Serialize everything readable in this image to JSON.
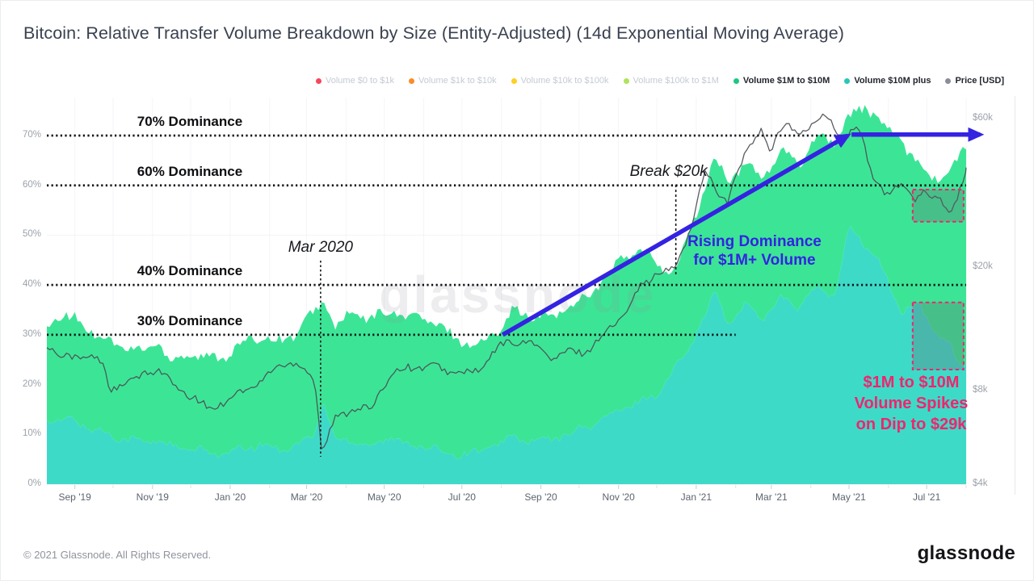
{
  "header": {
    "title": "Bitcoin: Relative Transfer Volume Breakdown by Size (Entity-Adjusted) (14d Exponential Moving Average)"
  },
  "legend": {
    "items": [
      {
        "label": "Volume $0 to $1k",
        "dot": "#F6465D",
        "active": false
      },
      {
        "label": "Volume $1k to $10k",
        "dot": "#F98C2B",
        "active": false
      },
      {
        "label": "Volume $10k to $100k",
        "dot": "#FFCF26",
        "active": false
      },
      {
        "label": "Volume $100k to $1M",
        "dot": "#AEE35C",
        "active": false
      },
      {
        "label": "Volume $1M to $10M",
        "dot": "#1FC583",
        "active": true
      },
      {
        "label": "Volume $10M plus",
        "dot": "#2BC5B8",
        "active": true
      },
      {
        "label": "Price [USD]",
        "dot": "#8A8E99",
        "active": true
      }
    ]
  },
  "watermark": {
    "text": "glassnode"
  },
  "footer": {
    "copyright": "© 2021 Glassnode. All Rights Reserved.",
    "logo": "glassnode"
  },
  "chart_data": {
    "type": "area",
    "stacking": "stacked",
    "x_range": [
      "2019-08-10",
      "2021-08-01"
    ],
    "x_ticks": [
      "Sep '19",
      "Nov '19",
      "Jan '20",
      "Mar '20",
      "May '20",
      "Jul '20",
      "Sep '20",
      "Nov '20",
      "Jan '21",
      "Mar '21",
      "May '21",
      "Jul '21"
    ],
    "y_left": {
      "unit": "%",
      "min": 0,
      "max": 77.7,
      "ticks": [
        0,
        10,
        20,
        30,
        40,
        50,
        60,
        70
      ],
      "tick_suffix": "%"
    },
    "y_right": {
      "unit": "USD",
      "scale": "log",
      "ticks": [
        {
          "label": "$60k",
          "value": 60
        },
        {
          "label": "$20k",
          "value": 20
        },
        {
          "label": "$8k",
          "value": 8
        },
        {
          "label": "$4k",
          "value": 4
        }
      ]
    },
    "noise": {
      "upper": 1.35,
      "lower": 0.95,
      "price": 0.035
    },
    "series": [
      {
        "name": "Volume $1M to $10M",
        "color": "#3CE596",
        "kind": "area_band",
        "band": "upper",
        "points": [
          [
            "2019-08-10",
            31
          ],
          [
            "2019-08-20",
            34
          ],
          [
            "2019-09-01",
            33
          ],
          [
            "2019-09-14",
            31
          ],
          [
            "2019-09-28",
            28.5
          ],
          [
            "2019-10-12",
            27.5
          ],
          [
            "2019-10-26",
            26.5
          ],
          [
            "2019-11-05",
            29
          ],
          [
            "2019-11-16",
            24.5
          ],
          [
            "2019-11-30",
            26.5
          ],
          [
            "2019-12-14",
            25
          ],
          [
            "2019-12-28",
            26
          ],
          [
            "2020-01-11",
            28
          ],
          [
            "2020-01-25",
            30
          ],
          [
            "2020-02-08",
            28.5
          ],
          [
            "2020-02-22",
            30.5
          ],
          [
            "2020-03-07",
            34.5
          ],
          [
            "2020-03-14",
            37
          ],
          [
            "2020-03-24",
            31.5
          ],
          [
            "2020-04-07",
            34.5
          ],
          [
            "2020-04-21",
            33
          ],
          [
            "2020-05-05",
            35
          ],
          [
            "2020-05-19",
            33.5
          ],
          [
            "2020-06-02",
            33.5
          ],
          [
            "2020-06-16",
            31
          ],
          [
            "2020-06-30",
            29
          ],
          [
            "2020-07-14",
            27.5
          ],
          [
            "2020-07-28",
            31
          ],
          [
            "2020-08-11",
            35
          ],
          [
            "2020-08-25",
            33.5
          ],
          [
            "2020-09-08",
            33.5
          ],
          [
            "2020-09-22",
            35.5
          ],
          [
            "2020-10-06",
            37.5
          ],
          [
            "2020-10-20",
            41
          ],
          [
            "2020-11-03",
            45
          ],
          [
            "2020-11-17",
            47
          ],
          [
            "2020-12-01",
            44.5
          ],
          [
            "2020-12-15",
            42.5
          ],
          [
            "2020-12-29",
            52
          ],
          [
            "2021-01-12",
            63
          ],
          [
            "2021-01-16",
            65
          ],
          [
            "2021-01-26",
            61
          ],
          [
            "2021-02-09",
            64
          ],
          [
            "2021-02-23",
            62
          ],
          [
            "2021-03-09",
            66.5
          ],
          [
            "2021-03-23",
            64.5
          ],
          [
            "2021-04-06",
            70
          ],
          [
            "2021-04-20",
            69
          ],
          [
            "2021-05-04",
            74.5
          ],
          [
            "2021-05-14",
            76
          ],
          [
            "2021-05-28",
            72
          ],
          [
            "2021-06-11",
            69
          ],
          [
            "2021-06-25",
            64
          ],
          [
            "2021-07-09",
            61.5
          ],
          [
            "2021-07-20",
            62.5
          ],
          [
            "2021-07-27",
            66
          ],
          [
            "2021-08-01",
            68
          ]
        ]
      },
      {
        "name": "Volume $10M plus",
        "color": "#3EDAC8",
        "kind": "area_band",
        "band": "lower",
        "points": [
          [
            "2019-08-10",
            13
          ],
          [
            "2019-08-20",
            12.5
          ],
          [
            "2019-09-01",
            13
          ],
          [
            "2019-09-14",
            11
          ],
          [
            "2019-09-28",
            10
          ],
          [
            "2019-10-12",
            9
          ],
          [
            "2019-10-26",
            8.5
          ],
          [
            "2019-11-05",
            9
          ],
          [
            "2019-11-16",
            7.5
          ],
          [
            "2019-11-30",
            7
          ],
          [
            "2019-12-14",
            6.5
          ],
          [
            "2019-12-28",
            6
          ],
          [
            "2020-01-11",
            7
          ],
          [
            "2020-01-25",
            8
          ],
          [
            "2020-02-08",
            7
          ],
          [
            "2020-02-22",
            8
          ],
          [
            "2020-03-07",
            9.5
          ],
          [
            "2020-03-14",
            17
          ],
          [
            "2020-03-24",
            8.5
          ],
          [
            "2020-04-07",
            9
          ],
          [
            "2020-04-21",
            7.5
          ],
          [
            "2020-05-05",
            9.5
          ],
          [
            "2020-05-19",
            8
          ],
          [
            "2020-06-02",
            7.5
          ],
          [
            "2020-06-16",
            6.5
          ],
          [
            "2020-06-30",
            6
          ],
          [
            "2020-07-14",
            6.5
          ],
          [
            "2020-07-28",
            8
          ],
          [
            "2020-08-11",
            9.5
          ],
          [
            "2020-08-25",
            8.5
          ],
          [
            "2020-09-08",
            9
          ],
          [
            "2020-09-22",
            10
          ],
          [
            "2020-10-06",
            11.5
          ],
          [
            "2020-10-20",
            13
          ],
          [
            "2020-11-03",
            15
          ],
          [
            "2020-11-17",
            16.5
          ],
          [
            "2020-12-01",
            18
          ],
          [
            "2020-12-15",
            23
          ],
          [
            "2020-12-29",
            29
          ],
          [
            "2021-01-12",
            36
          ],
          [
            "2021-01-16",
            39
          ],
          [
            "2021-01-26",
            32
          ],
          [
            "2021-02-09",
            36
          ],
          [
            "2021-02-23",
            33.5
          ],
          [
            "2021-03-09",
            37.5
          ],
          [
            "2021-03-23",
            35.5
          ],
          [
            "2021-04-06",
            39.5
          ],
          [
            "2021-04-20",
            37.5
          ],
          [
            "2021-05-01",
            52
          ],
          [
            "2021-05-14",
            48
          ],
          [
            "2021-05-28",
            43
          ],
          [
            "2021-06-11",
            34.5
          ],
          [
            "2021-06-25",
            36
          ],
          [
            "2021-07-09",
            30
          ],
          [
            "2021-07-18",
            28.5
          ],
          [
            "2021-07-24",
            25
          ],
          [
            "2021-08-01",
            24
          ]
        ]
      },
      {
        "name": "Price [USD]",
        "color": "#4A4E54",
        "kind": "line",
        "unit": "$k",
        "points": [
          [
            "2019-08-10",
            11.3
          ],
          [
            "2019-08-20",
            10.3
          ],
          [
            "2019-09-01",
            10.4
          ],
          [
            "2019-09-14",
            10.2
          ],
          [
            "2019-09-24",
            9.7
          ],
          [
            "2019-09-28",
            8.2
          ],
          [
            "2019-10-12",
            8.3
          ],
          [
            "2019-10-26",
            9.2
          ],
          [
            "2019-11-05",
            9.3
          ],
          [
            "2019-11-16",
            8.5
          ],
          [
            "2019-11-30",
            7.6
          ],
          [
            "2019-12-14",
            7.1
          ],
          [
            "2019-12-28",
            7.3
          ],
          [
            "2020-01-11",
            8.1
          ],
          [
            "2020-01-25",
            8.4
          ],
          [
            "2020-02-08",
            9.8
          ],
          [
            "2020-02-22",
            9.7
          ],
          [
            "2020-03-07",
            8.9
          ],
          [
            "2020-03-13",
            5.0
          ],
          [
            "2020-03-24",
            6.5
          ],
          [
            "2020-04-07",
            7.1
          ],
          [
            "2020-04-21",
            6.9
          ],
          [
            "2020-05-05",
            9.0
          ],
          [
            "2020-05-19",
            9.5
          ],
          [
            "2020-06-02",
            9.6
          ],
          [
            "2020-06-16",
            9.4
          ],
          [
            "2020-06-30",
            9.1
          ],
          [
            "2020-07-14",
            9.2
          ],
          [
            "2020-07-28",
            10.9
          ],
          [
            "2020-08-11",
            11.6
          ],
          [
            "2020-08-25",
            11.4
          ],
          [
            "2020-09-08",
            10.2
          ],
          [
            "2020-09-22",
            10.6
          ],
          [
            "2020-10-06",
            10.7
          ],
          [
            "2020-10-20",
            12.0
          ],
          [
            "2020-11-03",
            13.8
          ],
          [
            "2020-11-17",
            17.0
          ],
          [
            "2020-12-01",
            19.2
          ],
          [
            "2020-12-15",
            19.4
          ],
          [
            "2020-12-29",
            27.5
          ],
          [
            "2021-01-08",
            40.5
          ],
          [
            "2021-01-16",
            36
          ],
          [
            "2021-01-26",
            32.5
          ],
          [
            "2021-02-09",
            46.5
          ],
          [
            "2021-02-21",
            56
          ],
          [
            "2021-02-28",
            45.5
          ],
          [
            "2021-03-13",
            60
          ],
          [
            "2021-03-25",
            52.5
          ],
          [
            "2021-04-13",
            63.3
          ],
          [
            "2021-04-25",
            49.5
          ],
          [
            "2021-05-08",
            58.5
          ],
          [
            "2021-05-19",
            38
          ],
          [
            "2021-05-29",
            35
          ],
          [
            "2021-06-12",
            37
          ],
          [
            "2021-06-21",
            32
          ],
          [
            "2021-06-29",
            35.5
          ],
          [
            "2021-07-09",
            33.5
          ],
          [
            "2021-07-20",
            29.6
          ],
          [
            "2021-07-26",
            35
          ],
          [
            "2021-08-01",
            41.5
          ]
        ]
      }
    ],
    "annotations": {
      "dominance_lines": [
        {
          "label": "70% Dominance",
          "value": 70
        },
        {
          "label": "60% Dominance",
          "value": 60
        },
        {
          "label": "40% Dominance",
          "value": 40
        },
        {
          "label": "30% Dominance",
          "value": 30,
          "end_date": "2021-02-01"
        }
      ],
      "event_lines": [
        {
          "label": "Mar 2020",
          "date": "2020-03-12"
        },
        {
          "label": "Break $20k",
          "date": "2020-12-16"
        }
      ],
      "callouts": [
        {
          "lines": [
            "Rising Dominance",
            "for $1M+ Volume"
          ],
          "color": "#3423E1"
        },
        {
          "lines": [
            "$1M to $10M",
            "Volume Spikes",
            "on Dip to $29k"
          ],
          "color": "#F0246E"
        }
      ],
      "arrows": [
        {
          "from": {
            "date": "2020-08-02",
            "pct": 30
          },
          "to": {
            "date": "2021-04-30",
            "pct": 70
          }
        },
        {
          "from": {
            "date": "2021-05-03",
            "pct": 70.2
          },
          "to": {
            "date": "2021-08-12",
            "pct": 70.2
          }
        }
      ],
      "highlight_boxes": [
        {
          "date_start": "2021-06-20",
          "date_end": "2021-07-30",
          "metric": "price_usd_k",
          "from": 28,
          "to": 35.5
        },
        {
          "date_start": "2021-06-20",
          "date_end": "2021-07-30",
          "metric": "dominance_pct",
          "from": 23,
          "to": 36.5
        }
      ],
      "box_color": "#F0246E"
    }
  }
}
